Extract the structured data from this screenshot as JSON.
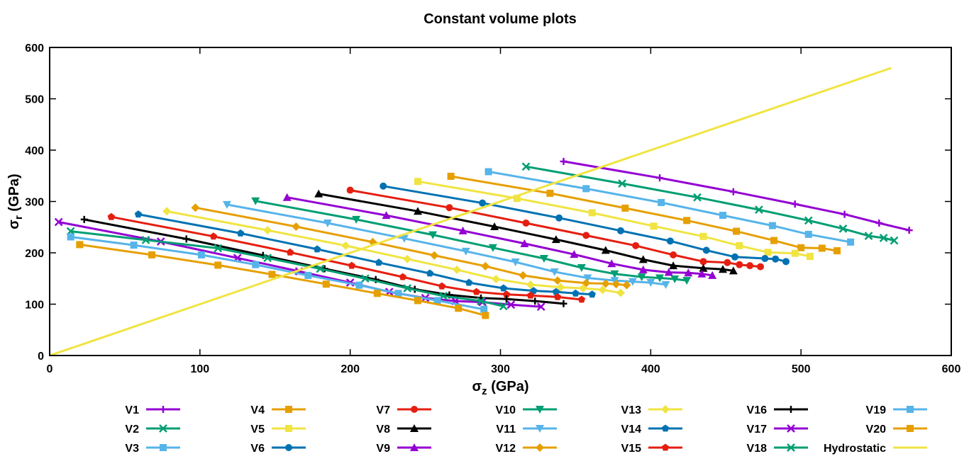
{
  "chart_data": {
    "type": "line",
    "title": "Constant volume plots",
    "xlabel": {
      "main": "σ",
      "sub": "z",
      "unit": " (GPa)"
    },
    "ylabel": {
      "main": "σ",
      "sub": "r",
      "unit": " (GPa)"
    },
    "xlim": [
      0,
      600
    ],
    "ylim": [
      0,
      600
    ],
    "xticks": [
      0,
      100,
      200,
      300,
      400,
      500,
      600
    ],
    "yticks": [
      0,
      100,
      200,
      300,
      400,
      500,
      600
    ],
    "grid": false,
    "legend_position": "bottom",
    "series": [
      {
        "name": "V1",
        "color": "#9400d3",
        "marker": "plus",
        "start": [
          342,
          378
        ],
        "end": [
          572,
          244
        ],
        "points": [
          [
            342,
            378
          ],
          [
            406,
            346
          ],
          [
            455,
            319
          ],
          [
            496,
            295
          ],
          [
            529,
            275
          ],
          [
            552,
            258
          ],
          [
            572,
            244
          ]
        ]
      },
      {
        "name": "V2",
        "color": "#009e73",
        "marker": "cross",
        "start": [
          317,
          368
        ],
        "end": [
          562,
          224
        ],
        "points": [
          [
            317,
            368
          ],
          [
            381,
            335
          ],
          [
            431,
            308
          ],
          [
            472,
            284
          ],
          [
            505,
            263
          ],
          [
            528,
            247
          ],
          [
            545,
            233
          ],
          [
            555,
            229
          ],
          [
            562,
            224
          ]
        ]
      },
      {
        "name": "V3",
        "color": "#56b4e9",
        "marker": "box",
        "start": [
          292,
          358
        ],
        "end": [
          533,
          221
        ],
        "points": [
          [
            292,
            358
          ],
          [
            357,
            325
          ],
          [
            407,
            298
          ],
          [
            448,
            273
          ],
          [
            481,
            253
          ],
          [
            505,
            236
          ],
          [
            533,
            221
          ]
        ]
      },
      {
        "name": "V4",
        "color": "#e69f00",
        "marker": "box",
        "start": [
          267,
          349
        ],
        "end": [
          524,
          204
        ],
        "points": [
          [
            267,
            349
          ],
          [
            333,
            316
          ],
          [
            383,
            287
          ],
          [
            424,
            263
          ],
          [
            457,
            242
          ],
          [
            482,
            224
          ],
          [
            500,
            210
          ],
          [
            514,
            209
          ],
          [
            524,
            204
          ]
        ]
      },
      {
        "name": "V5",
        "color": "#f0e442",
        "marker": "box",
        "start": [
          245,
          339
        ],
        "end": [
          506,
          193
        ],
        "points": [
          [
            245,
            339
          ],
          [
            311,
            306
          ],
          [
            361,
            278
          ],
          [
            402,
            252
          ],
          [
            435,
            232
          ],
          [
            459,
            214
          ],
          [
            478,
            201
          ],
          [
            496,
            199
          ],
          [
            506,
            193
          ]
        ]
      },
      {
        "name": "V6",
        "color": "#0072b2",
        "marker": "circle",
        "start": [
          222,
          330
        ],
        "end": [
          490,
          183
        ],
        "points": [
          [
            222,
            330
          ],
          [
            288,
            297
          ],
          [
            339,
            268
          ],
          [
            380,
            243
          ],
          [
            413,
            223
          ],
          [
            437,
            205
          ],
          [
            456,
            192
          ],
          [
            476,
            189
          ],
          [
            483,
            188
          ],
          [
            490,
            183
          ]
        ]
      },
      {
        "name": "V7",
        "color": "#e51e10",
        "marker": "circle",
        "start": [
          200,
          322
        ],
        "end": [
          473,
          173
        ],
        "points": [
          [
            200,
            322
          ],
          [
            266,
            288
          ],
          [
            317,
            258
          ],
          [
            357,
            234
          ],
          [
            390,
            214
          ],
          [
            415,
            196
          ],
          [
            435,
            183
          ],
          [
            451,
            181
          ],
          [
            459,
            177
          ],
          [
            466,
            175
          ],
          [
            473,
            173
          ]
        ]
      },
      {
        "name": "V8",
        "color": "#000000",
        "marker": "triangle",
        "start": [
          179,
          315
        ],
        "end": [
          455,
          165
        ],
        "points": [
          [
            179,
            315
          ],
          [
            245,
            281
          ],
          [
            296,
            251
          ],
          [
            337,
            226
          ],
          [
            370,
            205
          ],
          [
            395,
            187
          ],
          [
            415,
            175
          ],
          [
            435,
            170
          ],
          [
            448,
            168
          ],
          [
            455,
            165
          ]
        ]
      },
      {
        "name": "V9",
        "color": "#9400d3",
        "marker": "triangle",
        "start": [
          158,
          308
        ],
        "end": [
          441,
          156
        ],
        "points": [
          [
            158,
            308
          ],
          [
            224,
            273
          ],
          [
            275,
            243
          ],
          [
            316,
            218
          ],
          [
            349,
            197
          ],
          [
            374,
            179
          ],
          [
            395,
            167
          ],
          [
            412,
            162
          ],
          [
            425,
            161
          ],
          [
            434,
            159
          ],
          [
            441,
            156
          ]
        ]
      },
      {
        "name": "V10",
        "color": "#009e73",
        "marker": "triangledown",
        "start": [
          137,
          301
        ],
        "end": [
          424,
          146
        ],
        "points": [
          [
            137,
            301
          ],
          [
            204,
            265
          ],
          [
            255,
            235
          ],
          [
            295,
            210
          ],
          [
            329,
            189
          ],
          [
            354,
            171
          ],
          [
            376,
            159
          ],
          [
            394,
            153
          ],
          [
            406,
            151
          ],
          [
            416,
            149
          ],
          [
            424,
            146
          ]
        ]
      },
      {
        "name": "V11",
        "color": "#56b4e9",
        "marker": "triangledown",
        "start": [
          118,
          294
        ],
        "end": [
          410,
          138
        ],
        "points": [
          [
            118,
            294
          ],
          [
            185,
            258
          ],
          [
            236,
            228
          ],
          [
            277,
            203
          ],
          [
            310,
            182
          ],
          [
            336,
            163
          ],
          [
            358,
            151
          ],
          [
            376,
            146
          ],
          [
            388,
            144
          ],
          [
            400,
            142
          ],
          [
            410,
            138
          ]
        ]
      },
      {
        "name": "V12",
        "color": "#e69f00",
        "marker": "diamond",
        "start": [
          97,
          288
        ],
        "end": [
          384,
          137
        ],
        "points": [
          [
            97,
            288
          ],
          [
            164,
            251
          ],
          [
            215,
            221
          ],
          [
            256,
            195
          ],
          [
            290,
            174
          ],
          [
            315,
            156
          ],
          [
            338,
            146
          ],
          [
            357,
            141
          ],
          [
            370,
            140
          ],
          [
            377,
            139
          ],
          [
            384,
            137
          ]
        ]
      },
      {
        "name": "V13",
        "color": "#f0e442",
        "marker": "diamond",
        "start": [
          78,
          281
        ],
        "end": [
          380,
          122
        ],
        "points": [
          [
            78,
            281
          ],
          [
            145,
            244
          ],
          [
            197,
            214
          ],
          [
            238,
            188
          ],
          [
            271,
            167
          ],
          [
            297,
            149
          ],
          [
            320,
            138
          ],
          [
            340,
            133
          ],
          [
            355,
            131
          ],
          [
            368,
            128
          ],
          [
            380,
            122
          ]
        ]
      },
      {
        "name": "V14",
        "color": "#0072b2",
        "marker": "pentagon",
        "start": [
          59,
          275
        ],
        "end": [
          361,
          119
        ],
        "points": [
          [
            59,
            275
          ],
          [
            127,
            238
          ],
          [
            178,
            207
          ],
          [
            219,
            181
          ],
          [
            253,
            160
          ],
          [
            279,
            142
          ],
          [
            302,
            131
          ],
          [
            322,
            126
          ],
          [
            337,
            124
          ],
          [
            350,
            121
          ],
          [
            361,
            119
          ]
        ]
      },
      {
        "name": "V15",
        "color": "#e51e10",
        "marker": "pentagon",
        "start": [
          41,
          270
        ],
        "end": [
          354,
          109
        ],
        "points": [
          [
            41,
            270
          ],
          [
            109,
            232
          ],
          [
            160,
            201
          ],
          [
            201,
            175
          ],
          [
            235,
            153
          ],
          [
            261,
            135
          ],
          [
            284,
            124
          ],
          [
            304,
            119
          ],
          [
            320,
            117
          ],
          [
            338,
            114
          ],
          [
            354,
            109
          ]
        ]
      },
      {
        "name": "V16",
        "color": "#000000",
        "marker": "plus",
        "start": [
          23,
          265
        ],
        "end": [
          342,
          101
        ],
        "points": [
          [
            23,
            265
          ],
          [
            91,
            227
          ],
          [
            142,
            195
          ],
          [
            183,
            169
          ],
          [
            217,
            148
          ],
          [
            243,
            129
          ],
          [
            266,
            118
          ],
          [
            287,
            112
          ],
          [
            304,
            110
          ],
          [
            323,
            106
          ],
          [
            342,
            101
          ]
        ]
      },
      {
        "name": "V17",
        "color": "#9400d3",
        "marker": "cross",
        "start": [
          6,
          260
        ],
        "end": [
          327,
          95
        ],
        "points": [
          [
            6,
            260
          ],
          [
            74,
            222
          ],
          [
            125,
            190
          ],
          [
            166,
            164
          ],
          [
            200,
            142
          ],
          [
            226,
            124
          ],
          [
            250,
            112
          ],
          [
            270,
            106
          ],
          [
            288,
            104
          ],
          [
            307,
            99
          ],
          [
            327,
            95
          ]
        ]
      },
      {
        "name": "V18",
        "color": "#009e73",
        "marker": "cross",
        "start": [
          14,
          242
        ],
        "end": [
          302,
          96
        ],
        "points": [
          [
            14,
            242
          ],
          [
            64,
            225
          ],
          [
            112,
            209
          ],
          [
            145,
            190
          ],
          [
            180,
            169
          ],
          [
            210,
            150
          ],
          [
            238,
            131
          ],
          [
            262,
            116
          ],
          [
            287,
            106
          ],
          [
            302,
            96
          ]
        ]
      },
      {
        "name": "V19",
        "color": "#56b4e9",
        "marker": "box",
        "start": [
          14,
          231
        ],
        "end": [
          289,
          90
        ],
        "points": [
          [
            14,
            231
          ],
          [
            56,
            215
          ],
          [
            101,
            196
          ],
          [
            137,
            177
          ],
          [
            172,
            156
          ],
          [
            206,
            137
          ],
          [
            232,
            121
          ],
          [
            258,
            107
          ],
          [
            289,
            90
          ]
        ]
      },
      {
        "name": "V20",
        "color": "#e69f00",
        "marker": "box",
        "start": [
          20,
          216
        ],
        "end": [
          290,
          78
        ],
        "points": [
          [
            20,
            216
          ],
          [
            68,
            196
          ],
          [
            112,
            176
          ],
          [
            148,
            158
          ],
          [
            184,
            139
          ],
          [
            218,
            121
          ],
          [
            245,
            107
          ],
          [
            272,
            92
          ],
          [
            290,
            78
          ]
        ]
      },
      {
        "name": "Hydrostatic",
        "color": "#f0e442",
        "marker": "none",
        "start": [
          0,
          0
        ],
        "end": [
          560,
          560
        ],
        "points": [
          [
            0,
            0
          ],
          [
            560,
            560
          ]
        ]
      }
    ]
  }
}
